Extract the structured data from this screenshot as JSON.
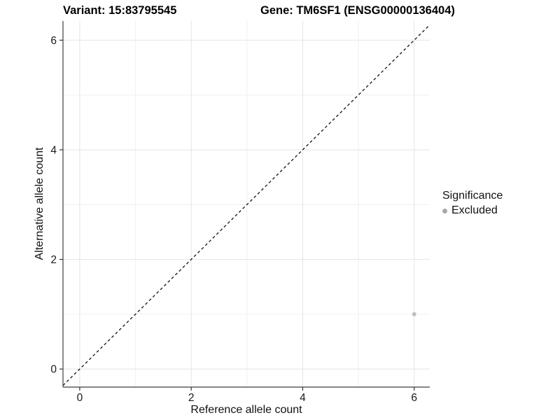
{
  "header": {
    "variant_title": "Variant: 15:83795545",
    "gene_title": "Gene: TM6SF1 (ENSG00000136404)"
  },
  "colors": {
    "background": "#ffffff",
    "axis_line": "#3f3f3f",
    "tick_mark": "#333333",
    "tick_label": "#1a1a1a",
    "grid_major": "#e4e4e4",
    "grid_minor": "#f0f0f0",
    "identity_line": "#111111",
    "point_default": "#bfbfbf"
  },
  "chart_data": {
    "type": "scatter",
    "xlabel": "Reference allele count",
    "ylabel": "Alternative allele count",
    "x_ticks": [
      0,
      2,
      4,
      6
    ],
    "y_ticks": [
      0,
      2,
      4,
      6
    ],
    "x_minor": [
      1,
      3,
      5
    ],
    "y_minor": [
      1,
      3,
      5
    ],
    "xlim": [
      -0.3,
      6.28
    ],
    "ylim": [
      -0.33,
      6.35
    ],
    "grid": true,
    "identity_line": {
      "equation": "y = x",
      "style": "dashed"
    },
    "points": [
      {
        "x": 6,
        "y": 1,
        "series": "Excluded",
        "color": "#c0c0c0"
      }
    ],
    "legend": {
      "title": "Significance",
      "position": "right",
      "items": [
        {
          "label": "Excluded",
          "color": "#a8a8a8"
        }
      ]
    }
  }
}
